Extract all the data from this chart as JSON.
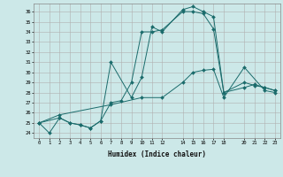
{
  "xlabel": "Humidex (Indice chaleur)",
  "bg_color": "#cce8e8",
  "line_color": "#1a6b6b",
  "grid_color": "#b0b0b0",
  "line1": {
    "x": [
      0,
      1,
      2,
      3,
      4,
      5,
      6,
      7,
      8,
      9,
      10,
      11,
      12,
      14,
      15,
      16,
      17,
      18,
      20,
      21,
      22,
      23
    ],
    "y": [
      25.0,
      24.0,
      25.5,
      25.0,
      24.8,
      24.5,
      25.2,
      27.0,
      27.2,
      29.0,
      34.0,
      34.0,
      34.2,
      36.0,
      36.0,
      35.8,
      34.3,
      28.0,
      28.5,
      28.8,
      28.5,
      28.2
    ]
  },
  "line2": {
    "x": [
      0,
      2,
      3,
      4,
      5,
      6,
      7,
      9,
      10,
      11,
      12,
      14,
      15,
      16,
      17,
      18,
      20,
      21,
      22,
      23
    ],
    "y": [
      25.0,
      25.5,
      25.0,
      24.8,
      24.5,
      25.2,
      31.0,
      27.5,
      29.5,
      34.5,
      34.0,
      36.2,
      36.5,
      36.0,
      35.5,
      28.0,
      29.0,
      28.7,
      28.5,
      28.2
    ]
  },
  "line3": {
    "x": [
      0,
      2,
      7,
      10,
      12,
      14,
      15,
      16,
      17,
      18,
      20,
      22,
      23
    ],
    "y": [
      25.0,
      25.8,
      26.8,
      27.5,
      27.5,
      29.0,
      30.0,
      30.2,
      30.3,
      27.5,
      30.5,
      28.2,
      28.0
    ]
  },
  "xlim": [
    -0.5,
    23.5
  ],
  "ylim": [
    23.5,
    36.8
  ],
  "xticks": [
    0,
    1,
    2,
    3,
    4,
    5,
    6,
    7,
    8,
    9,
    10,
    11,
    12,
    14,
    15,
    16,
    17,
    18,
    20,
    21,
    22,
    23
  ],
  "yticks": [
    24,
    25,
    26,
    27,
    28,
    29,
    30,
    31,
    32,
    33,
    34,
    35,
    36
  ]
}
